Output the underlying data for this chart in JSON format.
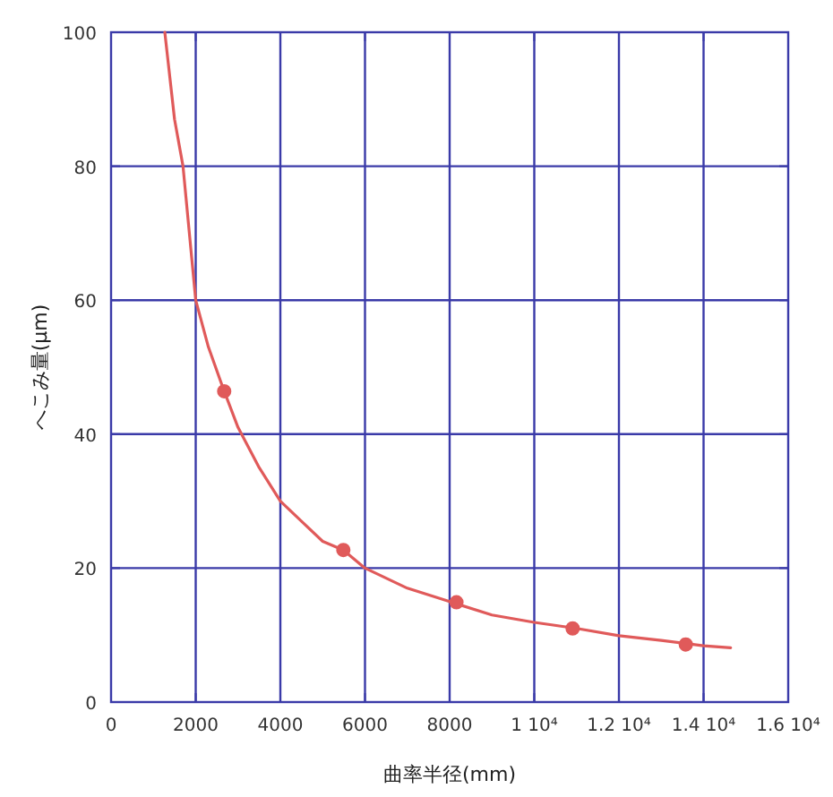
{
  "chart_data": {
    "type": "line",
    "xlabel": "曲率半径(mm)",
    "ylabel": "へこみ量(μm)",
    "xlim": [
      0,
      16000
    ],
    "ylim": [
      0,
      100
    ],
    "xticks": [
      0,
      2000,
      4000,
      6000,
      8000,
      {
        "value": 10000,
        "label": "1 10⁴"
      },
      {
        "value": 12000,
        "label": "1.2 10⁴"
      },
      {
        "value": 14000,
        "label": "1.4 10⁴"
      },
      {
        "value": 16000,
        "label": "1.6 10⁴"
      }
    ],
    "yticks": [
      0,
      20,
      40,
      60,
      80,
      100
    ],
    "grid": true,
    "series": [
      {
        "type": "line",
        "color": "#e05a5a",
        "marker": "none",
        "x": [
          1270,
          1500,
          1700,
          2000,
          2300,
          2673,
          3000,
          3500,
          4000,
          4500,
          5000,
          5488,
          6000,
          7000,
          8000,
          9000,
          10000,
          11000,
          12000,
          13000,
          14000,
          14640
        ],
        "values": [
          100,
          87,
          80,
          60,
          53,
          46.4,
          41,
          35,
          30,
          27,
          24,
          22.7,
          20,
          17,
          15,
          13,
          11.9,
          11,
          9.9,
          9.2,
          8.4,
          8.1
        ]
      },
      {
        "type": "scatter",
        "color": "#e05a5a",
        "marker": "circle",
        "x": [
          2673,
          5488,
          8161,
          10906,
          13580
        ],
        "values": [
          46.4,
          22.7,
          14.9,
          11.0,
          8.6
        ]
      }
    ]
  }
}
